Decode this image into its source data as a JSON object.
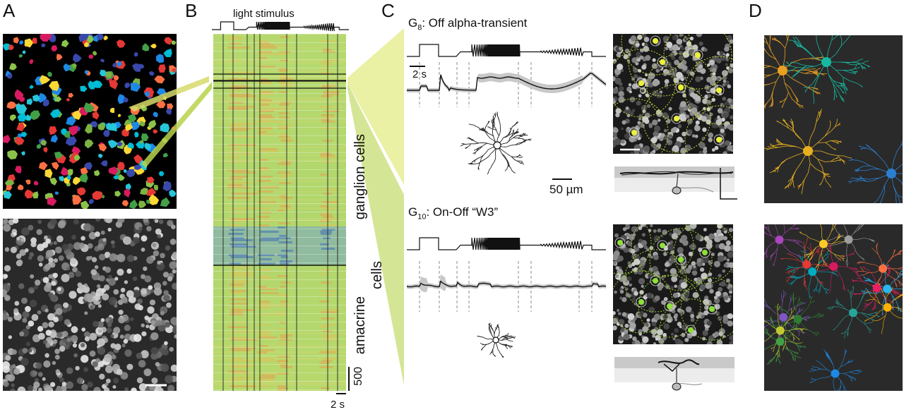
{
  "panels": {
    "A": "A",
    "B": "B",
    "C": "C",
    "D": "D"
  },
  "panel_b": {
    "stimulus_label": "light stimulus",
    "cell_count_scale": "500",
    "time_scale": "2 s",
    "group_labels": [
      "ganglion cells",
      "amacrine cells"
    ],
    "amacrine_split": [
      "amacrine",
      "cells"
    ]
  },
  "panel_c": {
    "cell_1": {
      "group_name": "G",
      "group_index": "8",
      "type_name": ": Off alpha-transient"
    },
    "cell_2": {
      "group_name": "G",
      "group_index": "10",
      "type_name": ": On-Off “W3”"
    },
    "time_scale": "2 s",
    "space_scale": "50 µm"
  },
  "colors": {
    "heatmap_base": "#b4d96a",
    "heatmap_warm": "#e6a050",
    "heatmap_cool": "#4f86c6",
    "wedge_light": "#e8ee9a",
    "wedge_green": "#c9e07a",
    "image_dark": "#141414",
    "dendrite_orange": "#e8a020",
    "dendrite_teal": "#18b8a0",
    "dendrite_blue": "#2b7fd0"
  }
}
